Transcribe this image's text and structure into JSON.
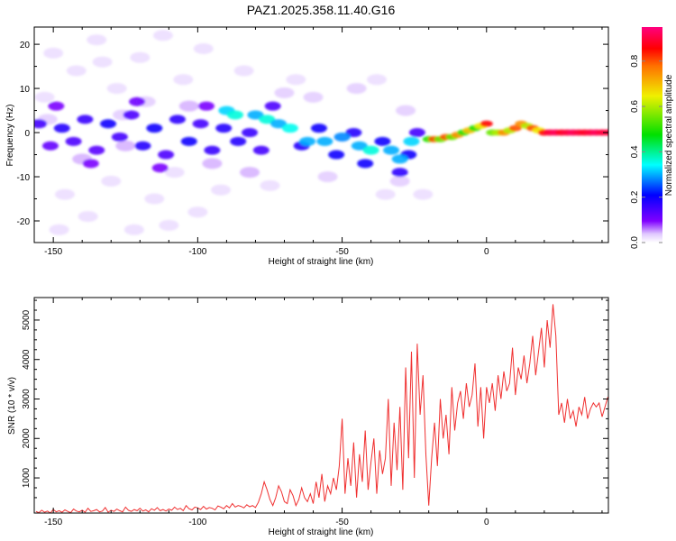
{
  "chart_data": [
    {
      "type": "heatmap",
      "title": "PAZ1.2025.358.11.40.G16",
      "xlabel": "Height of straight line (km)",
      "ylabel": "Frequency (Hz)",
      "xlim": [
        -156.6,
        42.2
      ],
      "ylim": [
        -24.9,
        23.9
      ],
      "xticks": [
        -150,
        -100,
        -50,
        0
      ],
      "yticks": [
        -20,
        -10,
        0,
        10,
        20
      ],
      "colorbar": {
        "label": "Normalized spectral amplitude",
        "range": [
          0,
          0.95
        ],
        "ticks": [
          "0.0",
          "0.2",
          "0.4",
          "0.6",
          "0.8"
        ]
      },
      "blobs_note": "[height_km, frequency_hz, normalized_amplitude]",
      "blobs": [
        [
          -150,
          18,
          0.03
        ],
        [
          -142,
          14,
          0.03
        ],
        [
          -135,
          21,
          0.03
        ],
        [
          -128,
          10,
          0.03
        ],
        [
          -120,
          17,
          0.03
        ],
        [
          -112,
          22,
          0.03
        ],
        [
          -105,
          12,
          0.03
        ],
        [
          -98,
          19,
          0.03
        ],
        [
          -146,
          -14,
          0.03
        ],
        [
          -138,
          -19,
          0.03
        ],
        [
          -130,
          -11,
          0.03
        ],
        [
          -122,
          -22,
          0.03
        ],
        [
          -115,
          -15,
          0.03
        ],
        [
          -108,
          -9,
          0.03
        ],
        [
          -100,
          -18,
          0.03
        ],
        [
          -92,
          -13,
          0.03
        ],
        [
          -153,
          8,
          0.03
        ],
        [
          -126,
          4,
          0.04
        ],
        [
          -118,
          7,
          0.04
        ],
        [
          -70,
          9,
          0.04
        ],
        [
          -60,
          8,
          0.04
        ],
        [
          -45,
          10,
          0.04
        ],
        [
          -38,
          12,
          0.03
        ],
        [
          -75,
          -12,
          0.03
        ],
        [
          -55,
          -10,
          0.04
        ],
        [
          -30,
          -11,
          0.04
        ],
        [
          -22,
          -14,
          0.03
        ],
        [
          -148,
          -22,
          0.03
        ],
        [
          -133,
          16,
          0.03
        ],
        [
          -110,
          -21,
          0.03
        ],
        [
          -84,
          14,
          0.03
        ],
        [
          -66,
          12,
          0.03
        ],
        [
          -28,
          5,
          0.04
        ],
        [
          -35,
          -14,
          0.03
        ],
        [
          -152,
          3,
          0.04
        ],
        [
          -140,
          -6,
          0.05
        ],
        [
          -125,
          -3,
          0.05
        ],
        [
          -103,
          6,
          0.05
        ],
        [
          -95,
          -7,
          0.05
        ],
        [
          -82,
          -9,
          0.05
        ],
        [
          -155,
          2,
          0.15
        ],
        [
          -151,
          -3,
          0.12
        ],
        [
          -147,
          1,
          0.18
        ],
        [
          -143,
          -2,
          0.14
        ],
        [
          -139,
          3,
          0.16
        ],
        [
          -135,
          -4,
          0.13
        ],
        [
          -131,
          2,
          0.2
        ],
        [
          -127,
          -1,
          0.15
        ],
        [
          -123,
          4,
          0.14
        ],
        [
          -119,
          -3,
          0.18
        ],
        [
          -115,
          1,
          0.2
        ],
        [
          -111,
          -5,
          0.14
        ],
        [
          -107,
          3,
          0.17
        ],
        [
          -103,
          -2,
          0.2
        ],
        [
          -99,
          2,
          0.15
        ],
        [
          -95,
          -4,
          0.16
        ],
        [
          -91,
          1,
          0.18
        ],
        [
          -149,
          6,
          0.1
        ],
        [
          -137,
          -7,
          0.1
        ],
        [
          -121,
          7,
          0.11
        ],
        [
          -113,
          -8,
          0.1
        ],
        [
          -97,
          6,
          0.1
        ],
        [
          -86,
          -2,
          0.18
        ],
        [
          -82,
          0,
          0.16
        ],
        [
          -78,
          -4,
          0.15
        ],
        [
          -74,
          6,
          0.14
        ],
        [
          -64,
          -3,
          0.18
        ],
        [
          -58,
          1,
          0.2
        ],
        [
          -52,
          -5,
          0.2
        ],
        [
          -46,
          0,
          0.18
        ],
        [
          -42,
          -7,
          0.2
        ],
        [
          -36,
          -2,
          0.2
        ],
        [
          -30,
          -9,
          0.17
        ],
        [
          -24,
          0,
          0.15
        ],
        [
          -27,
          -5,
          0.2
        ],
        [
          -90,
          5,
          0.32
        ],
        [
          -87,
          4,
          0.36
        ],
        [
          -80,
          4,
          0.3
        ],
        [
          -76,
          3,
          0.36
        ],
        [
          -72,
          2,
          0.3
        ],
        [
          -68,
          1,
          0.35
        ],
        [
          -62,
          -2,
          0.3
        ],
        [
          -56,
          -2,
          0.3
        ],
        [
          -50,
          -1,
          0.28
        ],
        [
          -44,
          -3,
          0.3
        ],
        [
          -40,
          -4,
          0.36
        ],
        [
          -33,
          -4,
          0.3
        ],
        [
          -30,
          -6,
          0.3
        ],
        [
          -26,
          -2,
          0.32
        ],
        [
          -20,
          -1.5,
          0.5
        ],
        [
          -18,
          -1.5,
          0.8
        ],
        [
          -16,
          -1.5,
          0.55
        ],
        [
          -14,
          -1,
          0.8
        ],
        [
          -12,
          -1,
          0.55
        ],
        [
          -10,
          -0.5,
          0.75
        ],
        [
          -8,
          0,
          0.5
        ],
        [
          -6,
          0.5,
          0.7
        ],
        [
          -4,
          1,
          0.5
        ],
        [
          -2,
          1.5,
          0.65
        ],
        [
          0,
          2,
          0.85
        ],
        [
          2,
          0,
          0.55
        ],
        [
          4,
          0,
          0.6
        ],
        [
          6,
          0,
          0.75
        ],
        [
          8,
          0.5,
          0.6
        ],
        [
          10,
          1,
          0.8
        ],
        [
          12,
          2,
          0.75
        ],
        [
          14,
          1.5,
          0.6
        ],
        [
          16,
          1,
          0.8
        ],
        [
          18,
          0.5,
          0.65
        ],
        [
          20,
          0,
          0.85
        ],
        [
          22,
          0,
          0.9
        ],
        [
          24,
          0,
          0.92
        ],
        [
          26,
          0,
          0.88
        ],
        [
          28,
          0,
          0.9
        ],
        [
          30,
          0,
          0.92
        ],
        [
          32,
          0,
          0.9
        ],
        [
          34,
          0,
          0.88
        ],
        [
          36,
          0,
          0.9
        ],
        [
          38,
          0,
          0.92
        ],
        [
          40,
          0,
          0.9
        ],
        [
          42,
          0,
          0.9
        ]
      ]
    },
    {
      "type": "line",
      "xlabel": "Height of straight line (km)",
      "ylabel": "SNR (10 * v/v)",
      "xlim": [
        -156.6,
        42.2
      ],
      "ylim": [
        110,
        5570
      ],
      "xticks": [
        -150,
        -100,
        -50,
        0
      ],
      "yticks": [
        1000,
        2000,
        3000,
        4000,
        5000
      ],
      "color": "#f03030",
      "x_start": -156,
      "x_step": 1,
      "values": [
        150,
        120,
        180,
        130,
        160,
        110,
        200,
        140,
        170,
        130,
        190,
        150,
        120,
        210,
        160,
        140,
        180,
        130,
        230,
        150,
        170,
        200,
        140,
        160,
        250,
        130,
        180,
        150,
        210,
        170,
        140,
        260,
        180,
        150,
        200,
        170,
        230,
        160,
        190,
        140,
        220,
        180,
        250,
        170,
        200,
        160,
        210,
        180,
        260,
        200,
        230,
        170,
        300,
        220,
        190,
        260,
        240,
        200,
        280,
        210,
        250,
        230,
        190,
        290,
        260,
        220,
        300,
        240,
        350,
        260,
        300,
        280,
        240,
        320,
        270,
        300,
        250,
        380,
        600,
        900,
        700,
        450,
        300,
        500,
        800,
        650,
        400,
        350,
        700,
        550,
        300,
        450,
        750,
        500,
        400,
        600,
        350,
        900,
        500,
        1100,
        400,
        800,
        600,
        1000,
        700,
        1300,
        2500,
        600,
        1500,
        800,
        1900,
        500,
        1600,
        900,
        2200,
        700,
        1400,
        2000,
        600,
        1700,
        1100,
        1500,
        3000,
        800,
        2400,
        1200,
        2800,
        700,
        3800,
        1500,
        4200,
        1000,
        4400,
        2600,
        3600,
        1600,
        300,
        1500,
        2400,
        1300,
        3000,
        2000,
        2600,
        1600,
        3300,
        2200,
        2900,
        3200,
        2500,
        3400,
        2800,
        3100,
        3900,
        2300,
        3300,
        2000,
        3300,
        2900,
        3400,
        2700,
        3600,
        3000,
        3700,
        3200,
        3400,
        4300,
        3100,
        3800,
        3500,
        4100,
        3400,
        3900,
        4600,
        3600,
        4200,
        4800,
        3800,
        5000,
        4300,
        5400,
        4600,
        2600,
        2900,
        2400,
        3000,
        2500,
        2700,
        2300,
        2800,
        2600,
        3050,
        2500,
        2750,
        2900,
        2800,
        2900,
        2550,
        2800,
        3050
      ]
    }
  ]
}
